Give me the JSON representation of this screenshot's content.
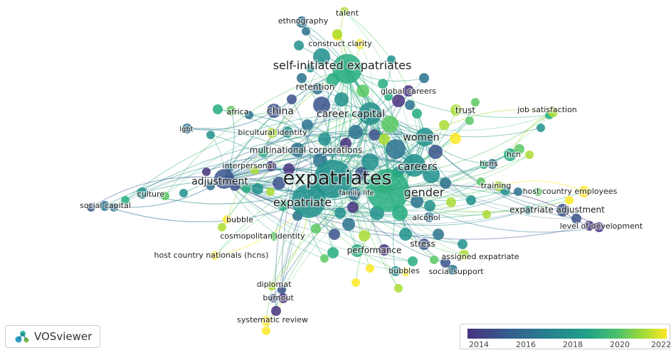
{
  "app": {
    "name": "VOSviewer"
  },
  "legend": {
    "ticks": [
      "2014",
      "2016",
      "2018",
      "2020",
      "2022"
    ],
    "colors": [
      "#46327e",
      "#365c8d",
      "#277f8e",
      "#1fa187",
      "#4ac16d",
      "#a0da39",
      "#fde725"
    ]
  },
  "labels": [
    {
      "id": "expatriates",
      "text": "expatriates"
    },
    {
      "id": "self-initiated-expatriates",
      "text": "self-initiated expatriates"
    },
    {
      "id": "expatriate",
      "text": "expatriate"
    },
    {
      "id": "gender",
      "text": "gender"
    },
    {
      "id": "careers",
      "text": "careers"
    },
    {
      "id": "career-capital",
      "text": "career capital"
    },
    {
      "id": "women",
      "text": "women"
    },
    {
      "id": "adjustment",
      "text": "adjustment"
    },
    {
      "id": "china",
      "text": "china"
    },
    {
      "id": "multinational-corporations",
      "text": "multinational corporations"
    },
    {
      "id": "culture",
      "text": "culture"
    },
    {
      "id": "social-capital",
      "text": "social capital"
    },
    {
      "id": "performance",
      "text": "performance"
    },
    {
      "id": "stress",
      "text": "stress"
    },
    {
      "id": "expatriate-adjustment",
      "text": "expatriate adjustment"
    },
    {
      "id": "host-country-employees",
      "text": "host country employees"
    },
    {
      "id": "job-satisfaction",
      "text": "job satisfaction"
    },
    {
      "id": "trust",
      "text": "trust"
    },
    {
      "id": "global-careers",
      "text": "global careers"
    },
    {
      "id": "retention",
      "text": "retention"
    },
    {
      "id": "construct-clarity",
      "text": "construct clarity"
    },
    {
      "id": "ethnography",
      "text": "ethnography"
    },
    {
      "id": "talent",
      "text": "talent"
    },
    {
      "id": "africa",
      "text": "africa"
    },
    {
      "id": "lgbt",
      "text": "lgbt"
    },
    {
      "id": "bicultural-identity",
      "text": "bicultural identity"
    },
    {
      "id": "interpersonal",
      "text": "interpersonal"
    },
    {
      "id": "family-life",
      "text": "family life"
    },
    {
      "id": "bubble",
      "text": "bubble"
    },
    {
      "id": "cosmopolitan-identity",
      "text": "cosmopolitan identity"
    },
    {
      "id": "host-country-nationals",
      "text": "host country nationals (hcns)"
    },
    {
      "id": "alcohol",
      "text": "alcohol"
    },
    {
      "id": "assigned-expatriate",
      "text": "assigned expatriate"
    },
    {
      "id": "social-support",
      "text": "social support"
    },
    {
      "id": "bubbles",
      "text": "bubbles"
    },
    {
      "id": "diplomat",
      "text": "diplomat"
    },
    {
      "id": "burnout",
      "text": "burnout"
    },
    {
      "id": "systematic-review",
      "text": "systematic review"
    },
    {
      "id": "hcns",
      "text": "hcns"
    },
    {
      "id": "hcn",
      "text": "hcn"
    },
    {
      "id": "training",
      "text": "training"
    },
    {
      "id": "level-of-development",
      "text": "level of development"
    }
  ]
}
